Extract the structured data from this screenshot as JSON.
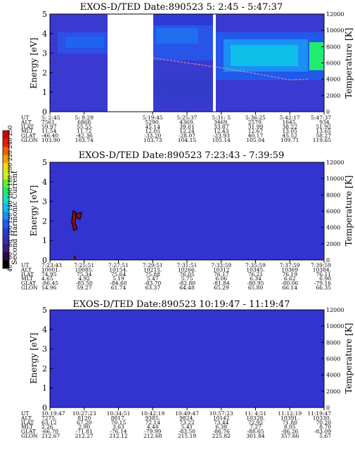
{
  "colorbar": {
    "label": "Second Harmonic Current",
    "ticks": [
      "40",
      "60",
      "80",
      "100",
      "120",
      "140",
      "160",
      "180",
      "200",
      "220",
      "240",
      "250"
    ],
    "colors": [
      "#000000",
      "#2a0a4a",
      "#3b1a7a",
      "#3a2ab5",
      "#2a3ad8",
      "#1f5cf0",
      "#1a8ff5",
      "#10bfe8",
      "#12e0c0",
      "#20ec70",
      "#60f030",
      "#c8f020",
      "#f0e000",
      "#f0a000",
      "#f06000",
      "#e82000",
      "#d80000"
    ]
  },
  "panels": [
    {
      "title": "EXOS-D/TED   Date:890523   5: 2:45 - 5:47:37",
      "ylabel": "Energy [eV]",
      "y2label": "Temperature [K]",
      "yticks": [
        "0",
        "1",
        "2",
        "3",
        "4",
        "5"
      ],
      "y2ticks": [
        "0",
        "2000",
        "4000",
        "6000",
        "8000",
        "10000",
        "12000"
      ],
      "table": {
        "row_labels": [
          "UT",
          "ALT",
          "ILAT",
          "MLT",
          "GLAT",
          "GLON"
        ],
        "columns": [
          [
            "5: 2:45",
            "7561.",
            "59.97",
            "11.54",
            "-46.40",
            "103.90"
          ],
          [
            "5: 8:29",
            "6868",
            "55.55",
            "11.72",
            "-42.36",
            "103.74"
          ],
          [
            "",
            "",
            " ",
            "",
            "",
            ""
          ],
          [
            "5:19:45",
            "5290.",
            "45.14",
            "12.05",
            "-33.20",
            "103.73"
          ],
          [
            "5:25:37",
            "4369.",
            "39.01",
            "12.24",
            "-28.07",
            "104.15"
          ],
          [
            "5:31: 5",
            "3469.",
            "33.87",
            "12.43",
            "-23.93",
            "105.14"
          ],
          [
            "5:36:25",
            "2579.",
            "31.99",
            "12.67",
            "40.17",
            "105.04"
          ],
          [
            "5:42:17",
            "1645.",
            "38.22",
            "13.05",
            "45.52",
            "109.71"
          ],
          [
            "5:47:37",
            "934.",
            "51.92",
            "13.65",
            "58.27",
            "119.65"
          ]
        ]
      }
    },
    {
      "title": "EXOS-D/TED   Date:890523   7:23:43 - 7:39:59",
      "ylabel": "Energy [eV]",
      "y2label": "Temperature [K]",
      "yticks": [
        "0",
        "1",
        "2",
        "3",
        "4",
        "5"
      ],
      "y2ticks": [
        "0",
        "2000",
        "4000",
        "6000",
        "8000",
        "10000",
        "12000"
      ],
      "table": {
        "row_labels": [
          "UT",
          "ALT",
          "ILAT",
          "MLT",
          "GLAT",
          "GLON"
        ],
        "columns": [
          [
            "7:23:43",
            "10001.",
            "74.95",
            "4.65",
            "-86.45",
            "54.96"
          ],
          [
            "7:25:51",
            "10085.",
            "75.34",
            "4.92",
            "-85.50",
            "59.27"
          ],
          [
            "7:27:51",
            "10154.",
            "75.64",
            "5.19",
            "-84.60",
            "61.74"
          ],
          [
            "7:29:51",
            "10215.",
            "75.88",
            "5.47",
            "-83.70",
            "63.37"
          ],
          [
            "7:31:51",
            "10266.",
            "76.05",
            "5.75",
            "-82.80",
            "64.48"
          ],
          [
            "7:33:59",
            "10312",
            "76.17",
            "6.06",
            "-81.84",
            "65.29"
          ],
          [
            "7:35:59",
            "10345.",
            "76.21",
            "6.34",
            "-80.95",
            "65.80"
          ],
          [
            "7:37:59",
            "10369",
            "76.19",
            "6.62",
            "-80.06",
            "66.14"
          ],
          [
            "7:39:59",
            "10384.",
            "76.11",
            "6.90",
            "-79.16",
            "66.35"
          ]
        ]
      }
    },
    {
      "title": "EXOS-D/TED   Date:890523   10:19:47 - 11:19:47",
      "ylabel": "Energy [eV]",
      "y2label": "Temperature [K]",
      "yticks": [
        "0",
        "1",
        "2",
        "3",
        "4",
        "5"
      ],
      "y2ticks": [
        "0",
        "2000",
        "4000",
        "6000",
        "8000",
        "10000",
        "12000"
      ],
      "table": {
        "row_labels": [
          "UT",
          "ALT",
          "ILAT",
          "MLT",
          "GLAT",
          "GLON"
        ],
        "columns": [
          [
            "10:19:47",
            "7275.",
            "63.12",
            "2.26",
            "-66.70",
            "212.67"
          ],
          [
            "10:27:23",
            "8120",
            "67.20",
            "2.90",
            "-71.81",
            "212.27"
          ],
          [
            "10:34:51",
            "8817.",
            "70.15",
            "3.63",
            "-76.14",
            "212.12"
          ],
          [
            "10:42:19",
            "9385.",
            "72.14",
            "4.48",
            "-79.99",
            "212.68"
          ],
          [
            "10:49:47",
            "9824.",
            "73.22",
            "5.41",
            "-83.50",
            "215.19"
          ],
          [
            "10:57:23",
            "10142",
            "73.44",
            "6.38",
            "-86.76",
            "225.82"
          ],
          [
            "11: 4:51",
            "10328.",
            "72.92",
            "7.27",
            "-88.65",
            "301.84"
          ],
          [
            "11:12:19",
            "10391.",
            "71.80",
            "8.05",
            "-86.26",
            "357.66"
          ],
          [
            "11:19:47",
            "10330.",
            "70.20",
            "8.70",
            "-83.09",
            "5.67"
          ]
        ]
      }
    }
  ],
  "chart_data": [
    {
      "type": "heatmap",
      "title": "EXOS-D/TED   Date:890523   5: 2:45 - 5:47:37",
      "ylabel": "Energy [eV]",
      "y2label": "Temperature [K]",
      "ylim": [
        0,
        5
      ],
      "y2lim": [
        0,
        12000
      ],
      "x_ticks": [
        "5: 2:45",
        "5: 8:29",
        "5:19:45",
        "5:25:37",
        "5:31: 5",
        "5:36:25",
        "5:42:17",
        "5:47:37"
      ],
      "data_gaps": [
        [
          "5: 8:29",
          "5:19:45"
        ],
        [
          "5:28:40",
          "5:30:00"
        ]
      ],
      "temperature_line": {
        "x": [
          "5:19:45",
          "5:25:37",
          "5:31: 5",
          "5:36:25",
          "5:42:17",
          "5:45:00"
        ],
        "y": [
          6600,
          6000,
          5400,
          4700,
          3900,
          4000
        ]
      }
    },
    {
      "type": "heatmap",
      "title": "EXOS-D/TED   Date:890523   7:23:43 - 7:39:59",
      "ylabel": "Energy [eV]",
      "y2label": "Temperature [K]",
      "ylim": [
        0,
        5
      ],
      "y2lim": [
        0,
        12000
      ],
      "x_ticks": [
        "7:23:43",
        "7:25:51",
        "7:27:51",
        "7:29:51",
        "7:31:51",
        "7:33:59",
        "7:35:59",
        "7:37:59",
        "7:39:59"
      ]
    },
    {
      "type": "heatmap",
      "title": "EXOS-D/TED   Date:890523   10:19:47 - 11:19:47",
      "ylabel": "Energy [eV]",
      "y2label": "Temperature [K]",
      "ylim": [
        0,
        5
      ],
      "y2lim": [
        0,
        12000
      ],
      "x_ticks": [
        "10:19:47",
        "10:27:23",
        "10:34:51",
        "10:42:19",
        "10:49:47",
        "10:57:23",
        "11: 4:51",
        "11:12:19",
        "11:19:47"
      ]
    }
  ]
}
